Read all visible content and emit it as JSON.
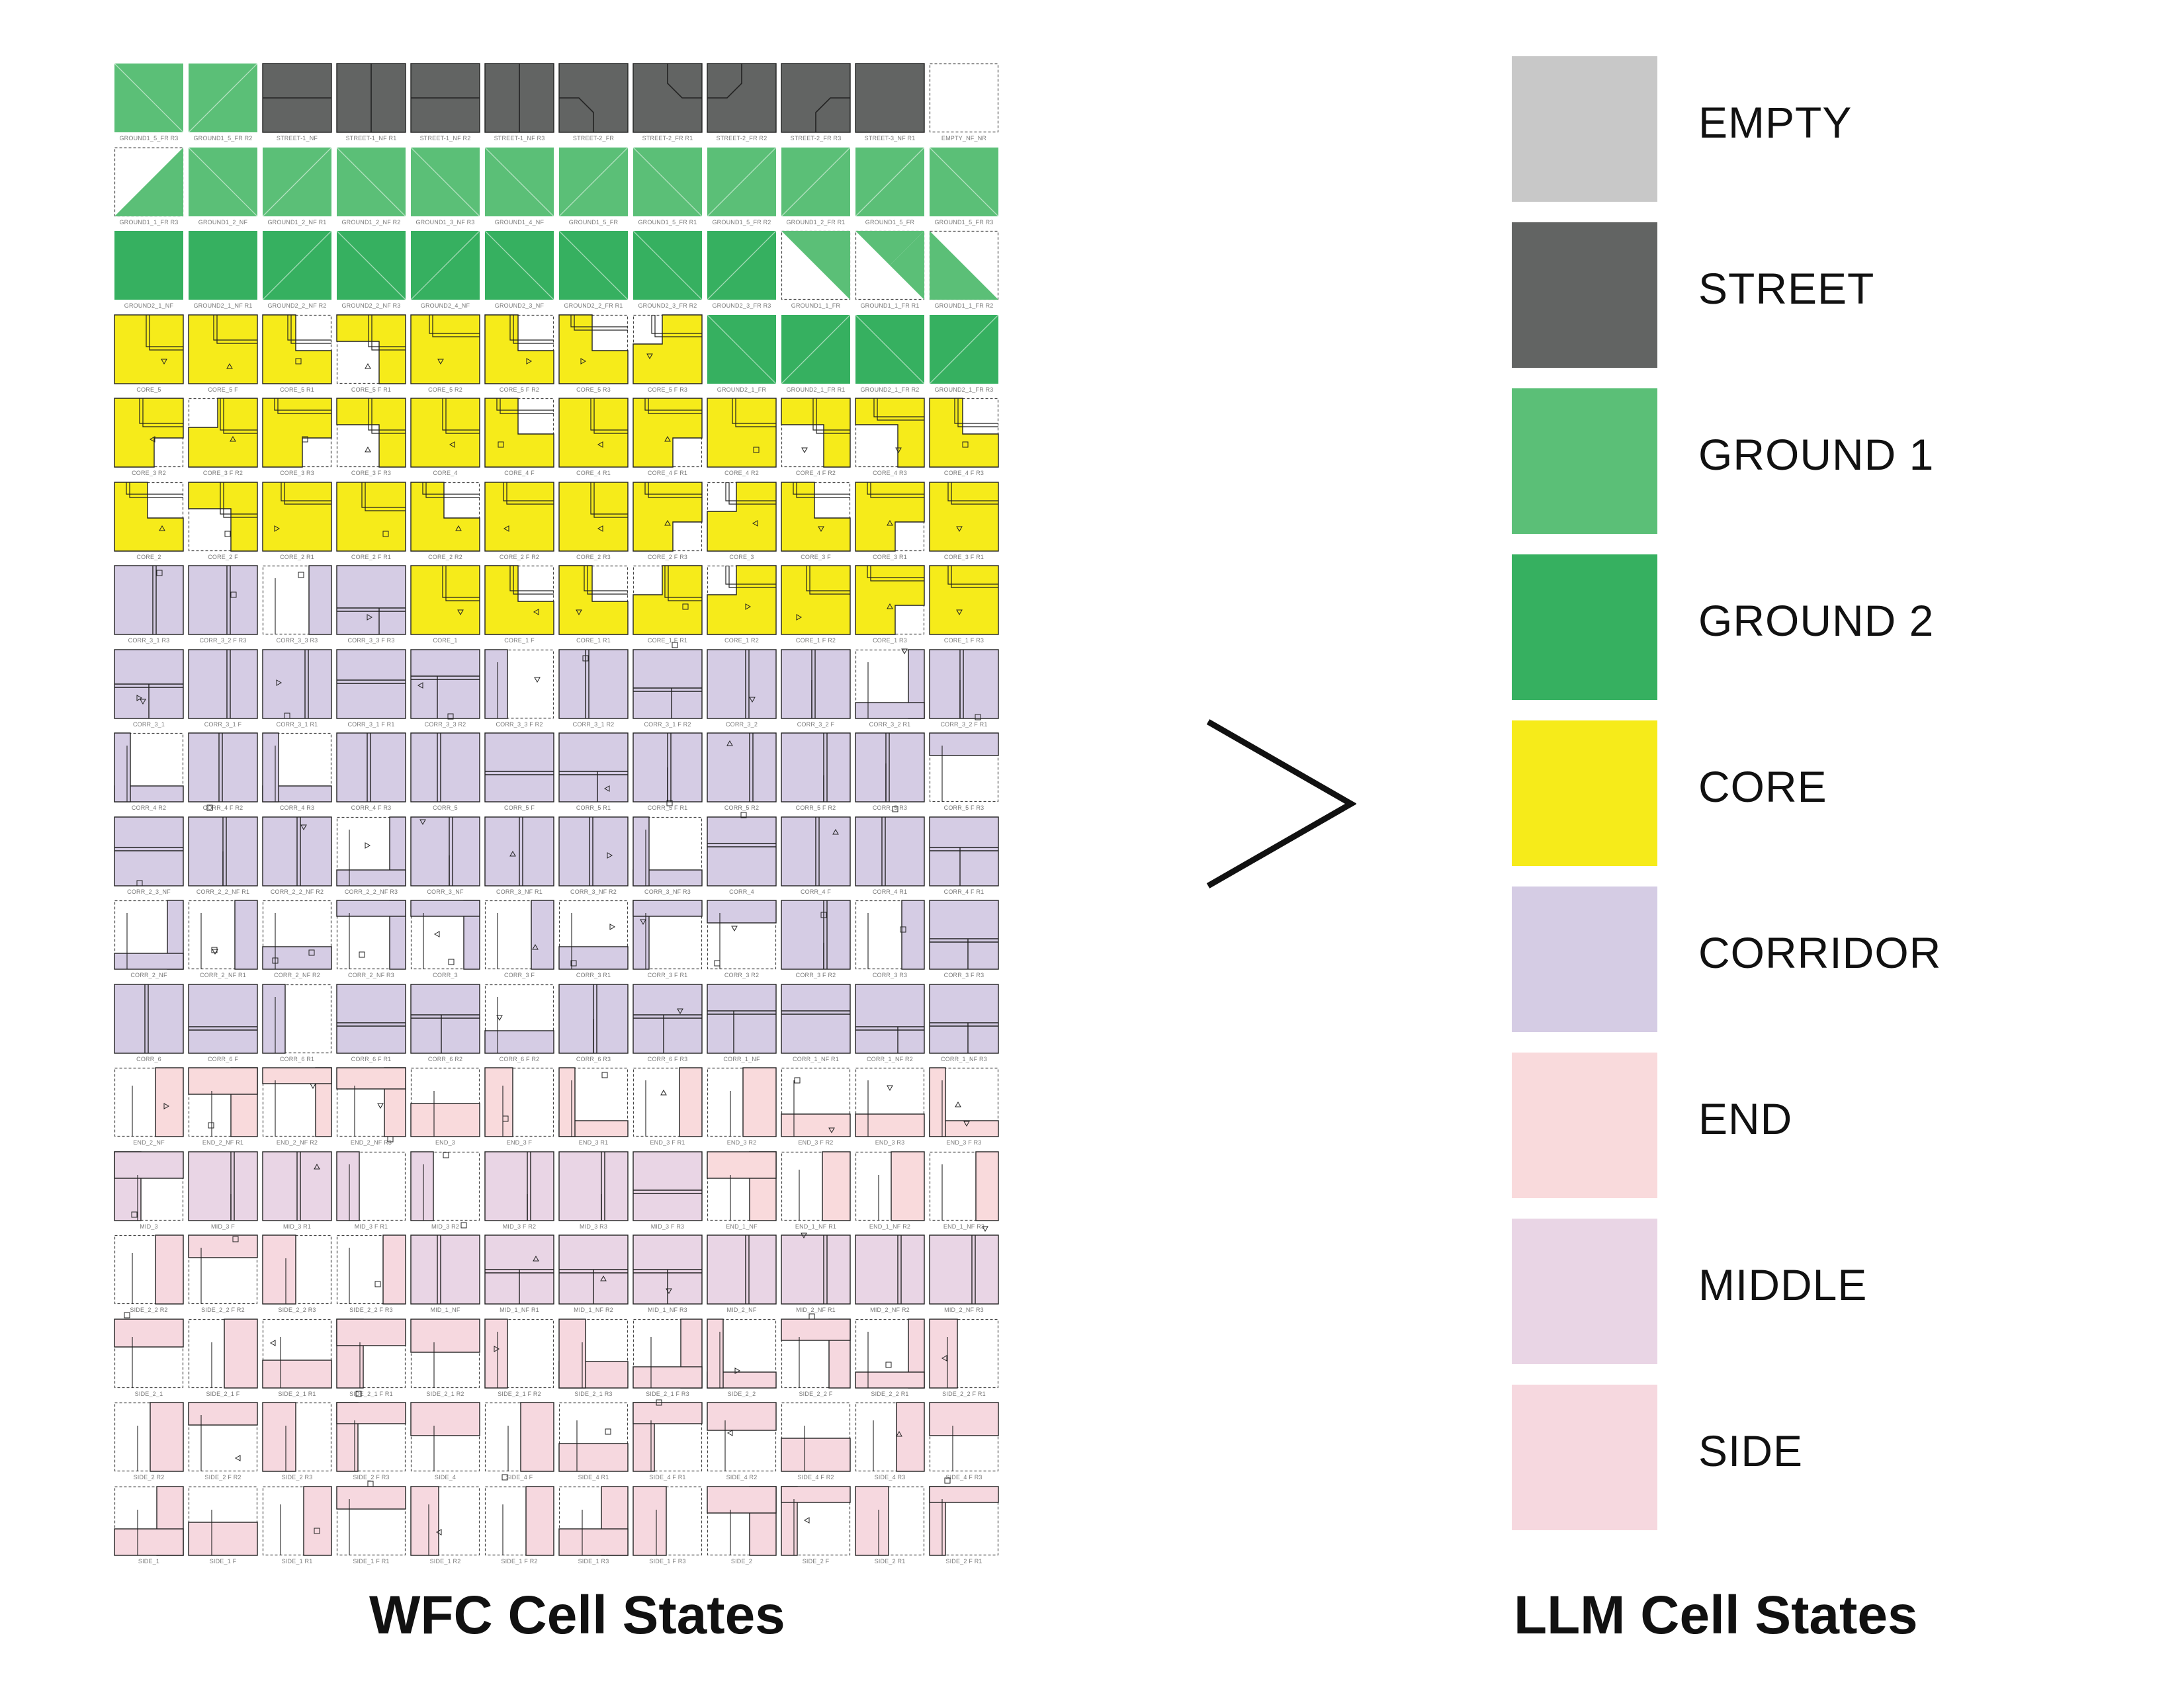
{
  "titles": {
    "left": "WFC Cell States",
    "right": "LLM Cell States"
  },
  "palette": {
    "empty": "#c8c8c8",
    "street": "#626463",
    "ground1": "#5bbf77",
    "ground2": "#36b060",
    "core": "#f6eb1a",
    "corridor": "#d5cce4",
    "end": "#f9dadc",
    "middle": "#e9d5e5",
    "side": "#f6d8df",
    "outline": "#222222"
  },
  "legend": [
    {
      "label": "EMPTY",
      "color": "#c8c8c8"
    },
    {
      "label": "STREET",
      "color": "#626463"
    },
    {
      "label": "GROUND 1",
      "color": "#5bbf77"
    },
    {
      "label": "GROUND 2",
      "color": "#36b060"
    },
    {
      "label": "CORE",
      "color": "#f6eb1a"
    },
    {
      "label": "CORRIDOR",
      "color": "#d5cce4"
    },
    {
      "label": "END",
      "color": "#f9dadc"
    },
    {
      "label": "MIDDLE",
      "color": "#e9d5e5"
    },
    {
      "label": "SIDE",
      "color": "#f6d8df"
    }
  ],
  "tiles": [
    [
      {
        "c": "g1",
        "p": "td",
        "l": "GROUND1_5_FR R3"
      },
      {
        "c": "g1",
        "p": "td",
        "l": "GROUND1_5_FR R2"
      },
      {
        "c": "st",
        "p": "sh",
        "l": "STREET-1_NF"
      },
      {
        "c": "st",
        "p": "sv",
        "l": "STREET-1_NF R1"
      },
      {
        "c": "st",
        "p": "sh",
        "l": "STREET-1_NF R2"
      },
      {
        "c": "st",
        "p": "sv",
        "l": "STREET-1_NF R3"
      },
      {
        "c": "st",
        "p": "sc",
        "l": "STREET-2_FR"
      },
      {
        "c": "st",
        "p": "sc",
        "l": "STREET-2_FR R1"
      },
      {
        "c": "st",
        "p": "sc",
        "l": "STREET-2_FR R2"
      },
      {
        "c": "st",
        "p": "sc",
        "l": "STREET-2_FR R3"
      },
      {
        "c": "st",
        "p": "",
        "l": "STREET-3_NF R1"
      },
      {
        "c": "em",
        "p": "",
        "l": "EMPTY_NF_NR"
      }
    ],
    [
      {
        "c": "g1",
        "p": "tr",
        "l": "GROUND1_1_FR R3"
      },
      {
        "c": "g1",
        "p": "td",
        "l": "GROUND1_2_NF"
      },
      {
        "c": "g1",
        "p": "td",
        "l": "GROUND1_2_NF R1"
      },
      {
        "c": "g1",
        "p": "td",
        "l": "GROUND1_2_NF R2"
      },
      {
        "c": "g1",
        "p": "td",
        "l": "GROUND1_3_NF R3"
      },
      {
        "c": "g1",
        "p": "td",
        "l": "GROUND1_4_NF"
      },
      {
        "c": "g1",
        "p": "td",
        "l": "GROUND1_5_FR"
      },
      {
        "c": "g1",
        "p": "td",
        "l": "GROUND1_5_FR R1"
      },
      {
        "c": "g1",
        "p": "td",
        "l": "GROUND1_5_FR R2"
      },
      {
        "c": "g1",
        "p": "td",
        "l": "GROUND1_2_FR R1"
      },
      {
        "c": "g1",
        "p": "td",
        "l": "GROUND1_5_FR"
      },
      {
        "c": "g1",
        "p": "td",
        "l": "GROUND1_5_FR R3"
      }
    ],
    [
      {
        "c": "g2",
        "p": "",
        "l": "GROUND2_1_NF"
      },
      {
        "c": "g2",
        "p": "",
        "l": "GROUND2_1_NF R1"
      },
      {
        "c": "g2",
        "p": "td",
        "l": "GROUND2_2_NF R2"
      },
      {
        "c": "g2",
        "p": "td",
        "l": "GROUND2_2_NF R3"
      },
      {
        "c": "g2",
        "p": "td",
        "l": "GROUND2_4_NF"
      },
      {
        "c": "g2",
        "p": "td",
        "l": "GROUND2_3_NF"
      },
      {
        "c": "g2",
        "p": "td",
        "l": "GROUND2_2_FR R1"
      },
      {
        "c": "g2",
        "p": "td",
        "l": "GROUND2_3_FR R2"
      },
      {
        "c": "g2",
        "p": "td",
        "l": "GROUND2_3_FR R3"
      },
      {
        "c": "g1",
        "p": "tbl",
        "l": "GROUND1_1_FR"
      },
      {
        "c": "g1",
        "p": "ttl",
        "l": "GROUND1_1_FR R1"
      },
      {
        "c": "g1",
        "p": "tbr",
        "l": "GROUND1_1_FR R2"
      }
    ],
    [
      {
        "c": "co",
        "p": "k1",
        "l": "CORE_5"
      },
      {
        "c": "co",
        "p": "k2",
        "l": "CORE_5 F"
      },
      {
        "c": "co",
        "p": "k3",
        "l": "CORE_5 R1"
      },
      {
        "c": "co",
        "p": "k4",
        "l": "CORE_5 F R1"
      },
      {
        "c": "co",
        "p": "k5",
        "l": "CORE_5 R2"
      },
      {
        "c": "co",
        "p": "k6",
        "l": "CORE_5 F R2"
      },
      {
        "c": "co",
        "p": "k7",
        "l": "CORE_5 R3"
      },
      {
        "c": "co",
        "p": "k8",
        "l": "CORE_5 F R3"
      },
      {
        "c": "g2",
        "p": "td",
        "l": "GROUND2_1_FR"
      },
      {
        "c": "g2",
        "p": "td",
        "l": "GROUND2_1_FR R1"
      },
      {
        "c": "g2",
        "p": "td",
        "l": "GROUND2_1_FR R2"
      },
      {
        "c": "g2",
        "p": "td",
        "l": "GROUND2_1_FR R3"
      }
    ],
    [
      {
        "c": "co",
        "p": "k2",
        "l": "CORE_3 R2"
      },
      {
        "c": "co",
        "p": "k3",
        "l": "CORE_3 F R2"
      },
      {
        "c": "co",
        "p": "k1",
        "l": "CORE_3 R3"
      },
      {
        "c": "co",
        "p": "k4",
        "l": "CORE_3 F R3"
      },
      {
        "c": "co",
        "p": "k6",
        "l": "CORE_4"
      },
      {
        "c": "co",
        "p": "k5",
        "l": "CORE_4 F"
      },
      {
        "c": "co",
        "p": "k7",
        "l": "CORE_4 R1"
      },
      {
        "c": "co",
        "p": "k8",
        "l": "CORE_4 F R1"
      },
      {
        "c": "co",
        "p": "k5",
        "l": "CORE_4 R2"
      },
      {
        "c": "co",
        "p": "k6",
        "l": "CORE_4 F R2"
      },
      {
        "c": "co",
        "p": "k7",
        "l": "CORE_4 R3"
      },
      {
        "c": "co",
        "p": "k8",
        "l": "CORE_4 F R3"
      }
    ],
    [
      {
        "c": "co",
        "p": "k1",
        "l": "CORE_2"
      },
      {
        "c": "co",
        "p": "k2",
        "l": "CORE_2 F"
      },
      {
        "c": "co",
        "p": "k3",
        "l": "CORE_2 R1"
      },
      {
        "c": "co",
        "p": "k4",
        "l": "CORE_2 F R1"
      },
      {
        "c": "co",
        "p": "k5",
        "l": "CORE_2 R2"
      },
      {
        "c": "co",
        "p": "k6",
        "l": "CORE_2 F R2"
      },
      {
        "c": "co",
        "p": "k7",
        "l": "CORE_2 R3"
      },
      {
        "c": "co",
        "p": "k8",
        "l": "CORE_2 F R3"
      },
      {
        "c": "co",
        "p": "k1",
        "l": "CORE_3"
      },
      {
        "c": "co",
        "p": "k2",
        "l": "CORE_3 F"
      },
      {
        "c": "co",
        "p": "k3",
        "l": "CORE_3 R1"
      },
      {
        "c": "co",
        "p": "k4",
        "l": "CORE_3 F R1"
      }
    ],
    [
      {
        "c": "cr",
        "p": "c1",
        "l": "CORR_3_1 R3"
      },
      {
        "c": "cr",
        "p": "c2",
        "l": "CORR_3_2 F R3"
      },
      {
        "c": "cr",
        "p": "c3",
        "l": "CORR_3_3 R3"
      },
      {
        "c": "cr",
        "p": "c4",
        "l": "CORR_3_3 F R3"
      },
      {
        "c": "co",
        "p": "k5",
        "l": "CORE_1"
      },
      {
        "c": "co",
        "p": "k6",
        "l": "CORE_1 F"
      },
      {
        "c": "co",
        "p": "k7",
        "l": "CORE_1 R1"
      },
      {
        "c": "co",
        "p": "k8",
        "l": "CORE_1 F R1"
      },
      {
        "c": "co",
        "p": "k1",
        "l": "CORE_1 R2"
      },
      {
        "c": "co",
        "p": "k2",
        "l": "CORE_1 F R2"
      },
      {
        "c": "co",
        "p": "k3",
        "l": "CORE_1 R3"
      },
      {
        "c": "co",
        "p": "k4",
        "l": "CORE_1 F R3"
      }
    ],
    [
      {
        "c": "cr",
        "p": "c5",
        "l": "CORR_3_1"
      },
      {
        "c": "cr",
        "p": "c6",
        "l": "CORR_3_1 F"
      },
      {
        "c": "cr",
        "p": "c7",
        "l": "CORR_3_1 R1"
      },
      {
        "c": "cr",
        "p": "c8",
        "l": "CORR_3_1 F R1"
      },
      {
        "c": "cr",
        "p": "c9",
        "l": "CORR_3_3 R2"
      },
      {
        "c": "cr",
        "p": "c10",
        "l": "CORR_3_3 F R2"
      },
      {
        "c": "cr",
        "p": "c11",
        "l": "CORR_3_1 R2"
      },
      {
        "c": "cr",
        "p": "c12",
        "l": "CORR_3_1 F R2"
      },
      {
        "c": "cr",
        "p": "c3",
        "l": "CORR_3_2"
      },
      {
        "c": "cr",
        "p": "c1",
        "l": "CORR_3_2 F"
      },
      {
        "c": "cr",
        "p": "c4",
        "l": "CORR_3_2 R1"
      },
      {
        "c": "cr",
        "p": "c2",
        "l": "CORR_3_2 F R1"
      }
    ],
    [
      {
        "c": "cr",
        "p": "c13",
        "l": "CORR_4 R2"
      },
      {
        "c": "cr",
        "p": "c14",
        "l": "CORR_4 F R2"
      },
      {
        "c": "cr",
        "p": "c1",
        "l": "CORR_4 R3"
      },
      {
        "c": "cr",
        "p": "c2",
        "l": "CORR_4 F R3"
      },
      {
        "c": "cr",
        "p": "c15",
        "l": "CORR_5"
      },
      {
        "c": "cr",
        "p": "c16",
        "l": "CORR_5 F"
      },
      {
        "c": "cr",
        "p": "c17",
        "l": "CORR_5 R1"
      },
      {
        "c": "cr",
        "p": "c18",
        "l": "CORR_5 F R1"
      },
      {
        "c": "cr",
        "p": "c19",
        "l": "CORR_5 R2"
      },
      {
        "c": "cr",
        "p": "c20",
        "l": "CORR_5 F R2"
      },
      {
        "c": "cr",
        "p": "c21",
        "l": "CORR_5 R3"
      },
      {
        "c": "cr",
        "p": "c22",
        "l": "CORR_5 F R3"
      }
    ],
    [
      {
        "c": "cr",
        "p": "c23",
        "l": "CORR_2_3_NF"
      },
      {
        "c": "cr",
        "p": "c24",
        "l": "CORR_2_2_NF R1"
      },
      {
        "c": "cr",
        "p": "c25",
        "l": "CORR_2_2_NF R2"
      },
      {
        "c": "cr",
        "p": "c26",
        "l": "CORR_2_2_NF R3"
      },
      {
        "c": "cr",
        "p": "c27",
        "l": "CORR_3_NF"
      },
      {
        "c": "cr",
        "p": "c28",
        "l": "CORR_3_NF R1"
      },
      {
        "c": "cr",
        "p": "c29",
        "l": "CORR_3_NF R2"
      },
      {
        "c": "cr",
        "p": "c30",
        "l": "CORR_3_NF R3"
      },
      {
        "c": "cr",
        "p": "c31",
        "l": "CORR_4"
      },
      {
        "c": "cr",
        "p": "c32",
        "l": "CORR_4 F"
      },
      {
        "c": "cr",
        "p": "c33",
        "l": "CORR_4 R1"
      },
      {
        "c": "cr",
        "p": "c34",
        "l": "CORR_4 F R1"
      }
    ],
    [
      {
        "c": "cr",
        "p": "c35",
        "l": "CORR_2_NF"
      },
      {
        "c": "cr",
        "p": "c36",
        "l": "CORR_2_NF R1"
      },
      {
        "c": "cr",
        "p": "c37",
        "l": "CORR_2_NF R2"
      },
      {
        "c": "cr",
        "p": "c38",
        "l": "CORR_2_NF R3"
      },
      {
        "c": "cr",
        "p": "c39",
        "l": "CORR_3"
      },
      {
        "c": "cr",
        "p": "c40",
        "l": "CORR_3 F"
      },
      {
        "c": "cr",
        "p": "c41",
        "l": "CORR_3 R1"
      },
      {
        "c": "cr",
        "p": "c42",
        "l": "CORR_3 F R1"
      },
      {
        "c": "cr",
        "p": "c43",
        "l": "CORR_3 R2"
      },
      {
        "c": "cr",
        "p": "c44",
        "l": "CORR_3 F R2"
      },
      {
        "c": "cr",
        "p": "c45",
        "l": "CORR_3 R3"
      },
      {
        "c": "cr",
        "p": "c46",
        "l": "CORR_3 F R3"
      }
    ],
    [
      {
        "c": "cr",
        "p": "c47",
        "l": "CORR_6"
      },
      {
        "c": "cr",
        "p": "c48",
        "l": "CORR_6 F"
      },
      {
        "c": "cr",
        "p": "c49",
        "l": "CORR_6 R1"
      },
      {
        "c": "cr",
        "p": "c50",
        "l": "CORR_6 F R1"
      },
      {
        "c": "cr",
        "p": "c51",
        "l": "CORR_6 R2"
      },
      {
        "c": "cr",
        "p": "c52",
        "l": "CORR_6 F R2"
      },
      {
        "c": "cr",
        "p": "c53",
        "l": "CORR_6 R3"
      },
      {
        "c": "cr",
        "p": "c54",
        "l": "CORR_6 F R3"
      },
      {
        "c": "cr",
        "p": "c55",
        "l": "CORR_1_NF"
      },
      {
        "c": "cr",
        "p": "c56",
        "l": "CORR_1_NF R1"
      },
      {
        "c": "cr",
        "p": "c57",
        "l": "CORR_1_NF R2"
      },
      {
        "c": "cr",
        "p": "c58",
        "l": "CORR_1_NF R3"
      }
    ],
    [
      {
        "c": "en",
        "p": "e1",
        "l": "END_2_NF"
      },
      {
        "c": "en",
        "p": "e2",
        "l": "END_2_NF R1"
      },
      {
        "c": "en",
        "p": "e3",
        "l": "END_2_NF R2"
      },
      {
        "c": "en",
        "p": "e4",
        "l": "END_2_NF R3"
      },
      {
        "c": "en",
        "p": "e5",
        "l": "END_3"
      },
      {
        "c": "en",
        "p": "e6",
        "l": "END_3 F"
      },
      {
        "c": "en",
        "p": "e7",
        "l": "END_3 R1"
      },
      {
        "c": "en",
        "p": "e8",
        "l": "END_3 F R1"
      },
      {
        "c": "en",
        "p": "e9",
        "l": "END_3 R2"
      },
      {
        "c": "en",
        "p": "e10",
        "l": "END_3 F R2"
      },
      {
        "c": "en",
        "p": "e11",
        "l": "END_3 R3"
      },
      {
        "c": "en",
        "p": "e12",
        "l": "END_3 F R3"
      }
    ],
    [
      {
        "c": "mi",
        "p": "m1",
        "l": "MID_3"
      },
      {
        "c": "mi",
        "p": "m2",
        "l": "MID_3 F"
      },
      {
        "c": "mi",
        "p": "m3",
        "l": "MID_3 R1"
      },
      {
        "c": "mi",
        "p": "m4",
        "l": "MID_3 F R1"
      },
      {
        "c": "mi",
        "p": "m5",
        "l": "MID_3 R2"
      },
      {
        "c": "mi",
        "p": "m6",
        "l": "MID_3 F R2"
      },
      {
        "c": "mi",
        "p": "m7",
        "l": "MID_3 R3"
      },
      {
        "c": "mi",
        "p": "m8",
        "l": "MID_3 F R3"
      },
      {
        "c": "en",
        "p": "e13",
        "l": "END_1_NF"
      },
      {
        "c": "en",
        "p": "e14",
        "l": "END_1_NF R1"
      },
      {
        "c": "en",
        "p": "e15",
        "l": "END_1_NF R2"
      },
      {
        "c": "en",
        "p": "e16",
        "l": "END_1_NF R3"
      }
    ],
    [
      {
        "c": "si",
        "p": "s1",
        "l": "SIDE_2_2 R2"
      },
      {
        "c": "si",
        "p": "s2",
        "l": "SIDE_2_2 F R2"
      },
      {
        "c": "si",
        "p": "s3",
        "l": "SIDE_2_2 R3"
      },
      {
        "c": "si",
        "p": "s4",
        "l": "SIDE_2_2 F R3"
      },
      {
        "c": "mi",
        "p": "m9",
        "l": "MID_1_NF"
      },
      {
        "c": "mi",
        "p": "m10",
        "l": "MID_1_NF R1"
      },
      {
        "c": "mi",
        "p": "m11",
        "l": "MID_1_NF R2"
      },
      {
        "c": "mi",
        "p": "m12",
        "l": "MID_1_NF R3"
      },
      {
        "c": "mi",
        "p": "m13",
        "l": "MID_2_NF"
      },
      {
        "c": "mi",
        "p": "m14",
        "l": "MID_2_NF R1"
      },
      {
        "c": "mi",
        "p": "m15",
        "l": "MID_2_NF R2"
      },
      {
        "c": "mi",
        "p": "m16",
        "l": "MID_2_NF R3"
      }
    ],
    [
      {
        "c": "si",
        "p": "s5",
        "l": "SIDE_2_1"
      },
      {
        "c": "si",
        "p": "s6",
        "l": "SIDE_2_1 F"
      },
      {
        "c": "si",
        "p": "s7",
        "l": "SIDE_2_1 R1"
      },
      {
        "c": "si",
        "p": "s8",
        "l": "SIDE_2_1 F R1"
      },
      {
        "c": "si",
        "p": "s9",
        "l": "SIDE_2_1 R2"
      },
      {
        "c": "si",
        "p": "s10",
        "l": "SIDE_2_1 F R2"
      },
      {
        "c": "si",
        "p": "s11",
        "l": "SIDE_2_1 R3"
      },
      {
        "c": "si",
        "p": "s12",
        "l": "SIDE_2_1 F R3"
      },
      {
        "c": "si",
        "p": "s13",
        "l": "SIDE_2_2"
      },
      {
        "c": "si",
        "p": "s14",
        "l": "SIDE_2_2 F"
      },
      {
        "c": "si",
        "p": "s15",
        "l": "SIDE_2_2 R1"
      },
      {
        "c": "si",
        "p": "s16",
        "l": "SIDE_2_2 F R1"
      }
    ],
    [
      {
        "c": "si",
        "p": "s17",
        "l": "SIDE_2 R2"
      },
      {
        "c": "si",
        "p": "s18",
        "l": "SIDE_2 F R2"
      },
      {
        "c": "si",
        "p": "s19",
        "l": "SIDE_2 R3"
      },
      {
        "c": "si",
        "p": "s20",
        "l": "SIDE_2 F R3"
      },
      {
        "c": "si",
        "p": "s21",
        "l": "SIDE_4"
      },
      {
        "c": "si",
        "p": "s22",
        "l": "SIDE_4 F"
      },
      {
        "c": "si",
        "p": "s23",
        "l": "SIDE_4 R1"
      },
      {
        "c": "si",
        "p": "s24",
        "l": "SIDE_4 F R1"
      },
      {
        "c": "si",
        "p": "s25",
        "l": "SIDE_4 R2"
      },
      {
        "c": "si",
        "p": "s26",
        "l": "SIDE_4 F R2"
      },
      {
        "c": "si",
        "p": "s27",
        "l": "SIDE_4 R3"
      },
      {
        "c": "si",
        "p": "s28",
        "l": "SIDE_4 F R3"
      }
    ],
    [
      {
        "c": "si",
        "p": "s29",
        "l": "SIDE_1"
      },
      {
        "c": "si",
        "p": "s30",
        "l": "SIDE_1 F"
      },
      {
        "c": "si",
        "p": "s31",
        "l": "SIDE_1 R1"
      },
      {
        "c": "si",
        "p": "s32",
        "l": "SIDE_1 F R1"
      },
      {
        "c": "si",
        "p": "s33",
        "l": "SIDE_1 R2"
      },
      {
        "c": "si",
        "p": "s34",
        "l": "SIDE_1 F R2"
      },
      {
        "c": "si",
        "p": "s35",
        "l": "SIDE_1 R3"
      },
      {
        "c": "si",
        "p": "s36",
        "l": "SIDE_1 F R3"
      },
      {
        "c": "si",
        "p": "s37",
        "l": "SIDE_2"
      },
      {
        "c": "si",
        "p": "s38",
        "l": "SIDE_2 F"
      },
      {
        "c": "si",
        "p": "s39",
        "l": "SIDE_2 R1"
      },
      {
        "c": "si",
        "p": "s40",
        "l": "SIDE_2 F R1"
      }
    ]
  ]
}
